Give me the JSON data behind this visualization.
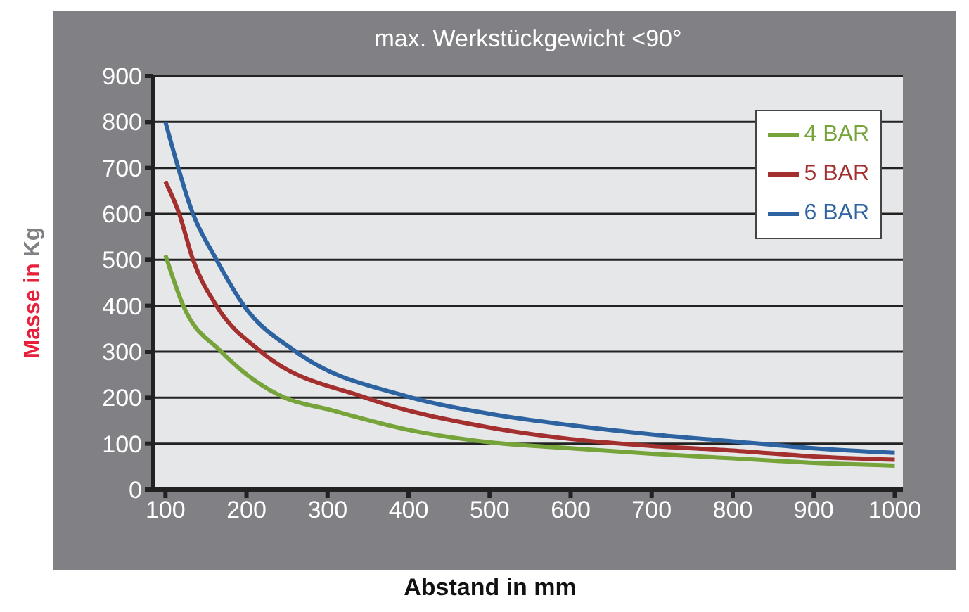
{
  "chart_data": {
    "type": "line",
    "title": "max. Werkstückgewicht <90°",
    "xlabel": "Abstand in mm",
    "ylabel": "Masse in Kg",
    "xlim": [
      85,
      1010
    ],
    "xticks": [
      100,
      200,
      300,
      400,
      500,
      600,
      700,
      800,
      900,
      1000
    ],
    "ylim": [
      0,
      900
    ],
    "yticks": [
      0,
      100,
      200,
      300,
      400,
      500,
      600,
      700,
      800,
      900
    ],
    "grid": "y",
    "legend": "top right",
    "marker": "none",
    "line_style": "solid",
    "series": [
      {
        "name": "4 BAR",
        "color": "#76a33a",
        "x": [
          100,
          122,
          169,
          247,
          300,
          400,
          500,
          600,
          700,
          800,
          900,
          1000
        ],
        "values": [
          510,
          400,
          300,
          200,
          175,
          130,
          103,
          90,
          78,
          68,
          58,
          52
        ]
      },
      {
        "name": "5 BAR",
        "color": "#a3302e",
        "x": [
          100,
          117,
          134,
          163,
          218,
          347,
          500,
          600,
          700,
          800,
          900,
          1000
        ],
        "values": [
          670,
          600,
          500,
          400,
          300,
          200,
          135,
          110,
          95,
          85,
          72,
          65
        ]
      },
      {
        "name": "6 BAR",
        "color": "#2d63a0",
        "x": [
          100,
          134,
          163,
          197,
          261,
          400,
          500,
          600,
          700,
          800,
          900,
          1000
        ],
        "values": [
          800,
          600,
          500,
          400,
          300,
          202,
          165,
          140,
          120,
          105,
          90,
          80
        ]
      }
    ]
  }
}
